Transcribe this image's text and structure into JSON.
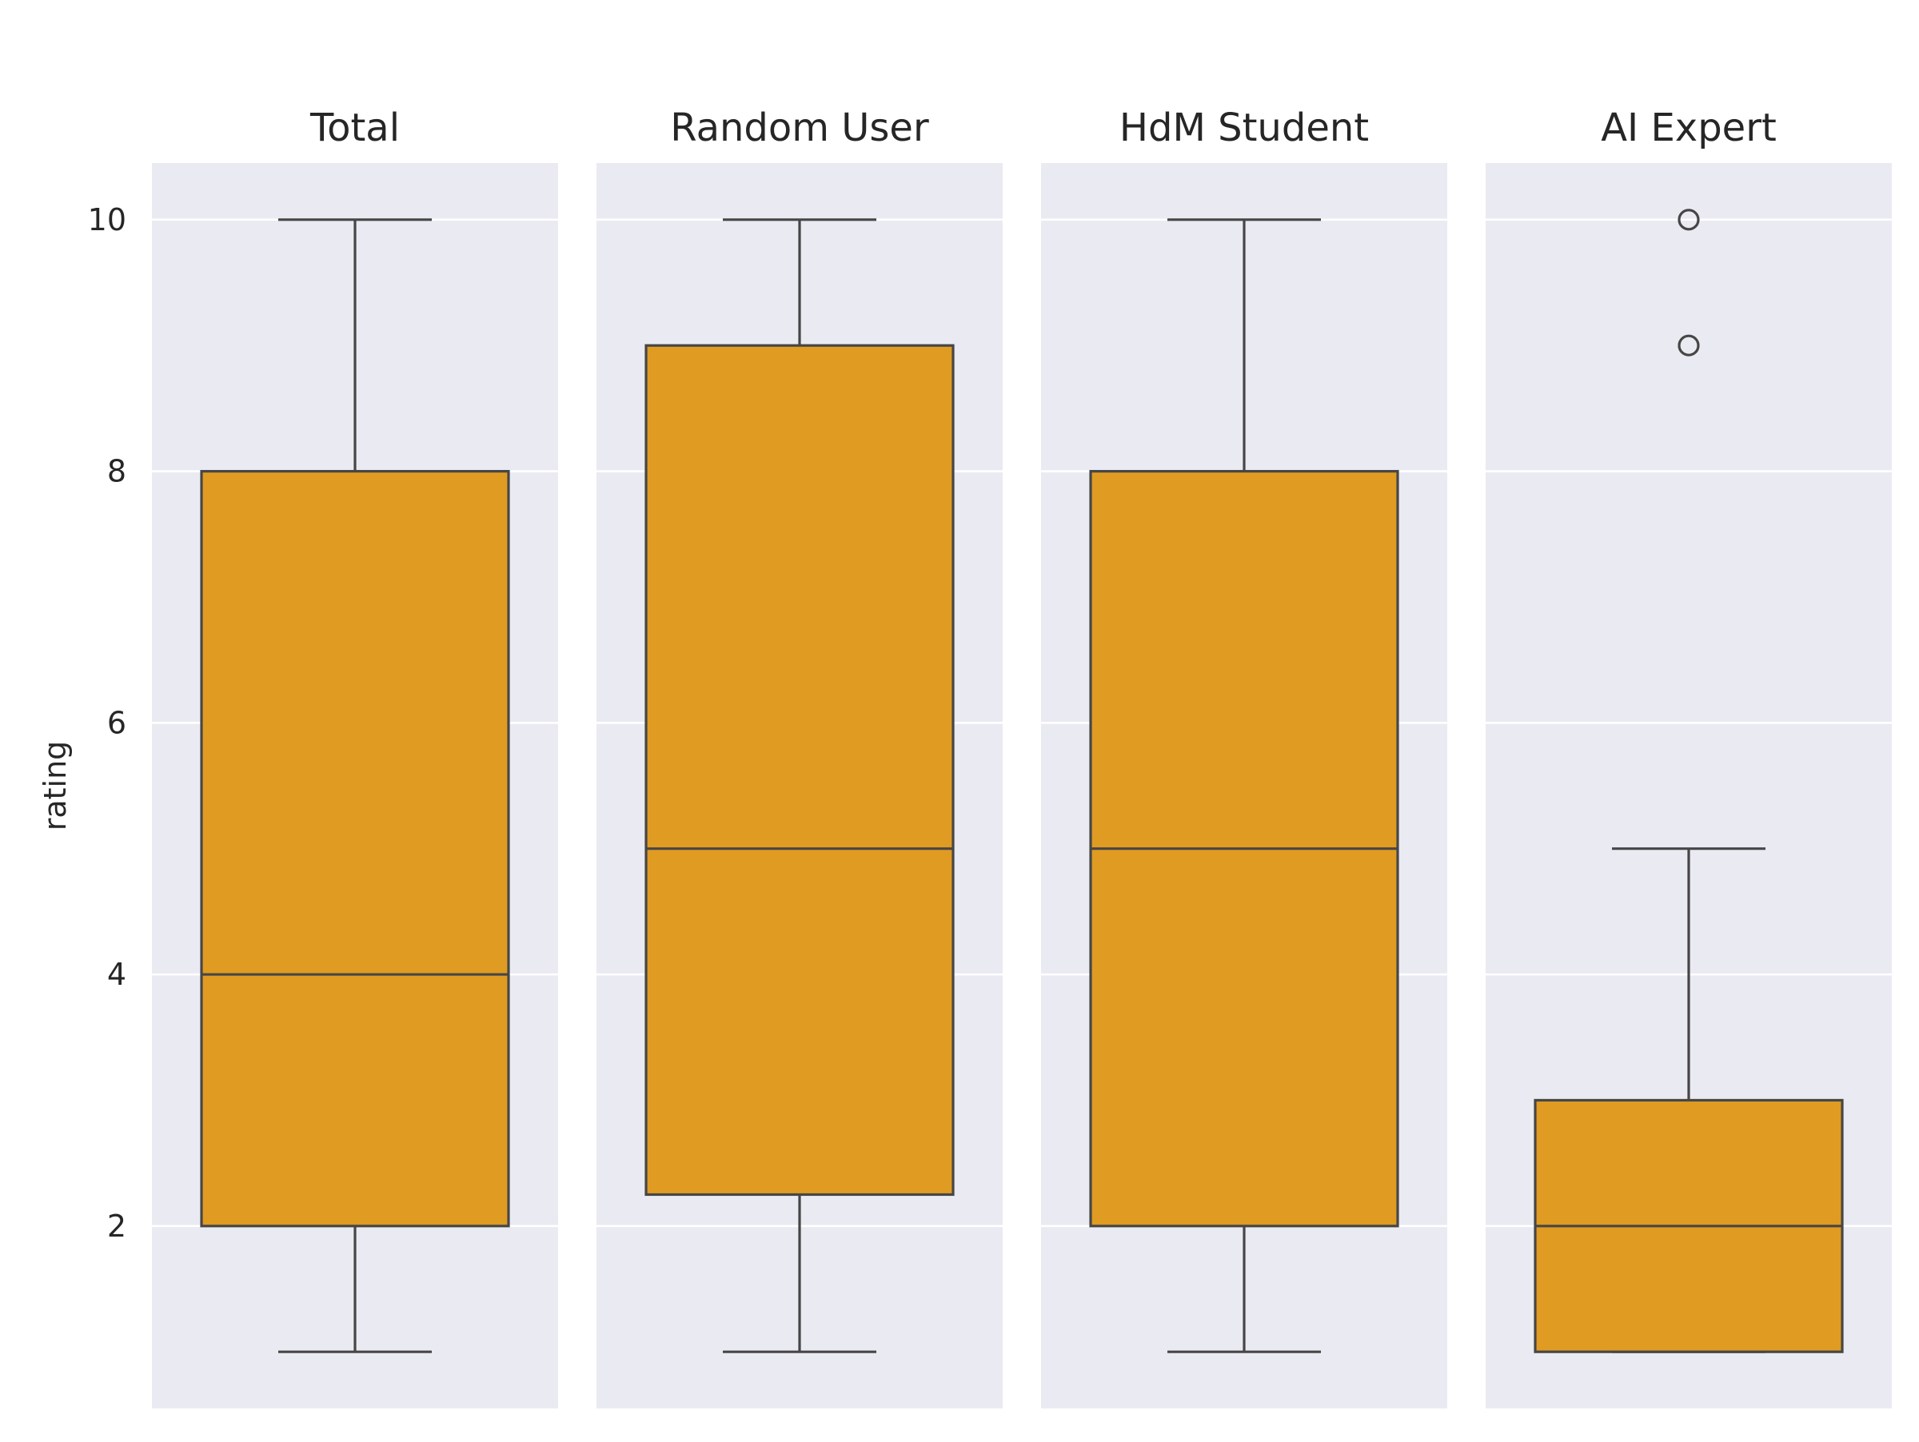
{
  "chart_data": {
    "type": "box",
    "ylabel": "rating",
    "yticks": [
      2,
      4,
      6,
      8,
      10
    ],
    "ylim": [
      0.55,
      10.45
    ],
    "grid": true,
    "box_color": "#e09b22",
    "line_color": "#464646",
    "background": "#eaeaf2",
    "panels": [
      {
        "title": "Total",
        "whisker_low": 1,
        "q1": 2,
        "median": 4,
        "q3": 8,
        "whisker_high": 10,
        "outliers": []
      },
      {
        "title": "Random User",
        "whisker_low": 1,
        "q1": 2.25,
        "median": 5,
        "q3": 9,
        "whisker_high": 10,
        "outliers": []
      },
      {
        "title": "HdM Student",
        "whisker_low": 1,
        "q1": 2,
        "median": 5,
        "q3": 8,
        "whisker_high": 10,
        "outliers": []
      },
      {
        "title": "AI Expert",
        "whisker_low": 1,
        "q1": 1,
        "median": 2,
        "q3": 3,
        "whisker_high": 5,
        "outliers": [
          9,
          10
        ]
      }
    ]
  }
}
